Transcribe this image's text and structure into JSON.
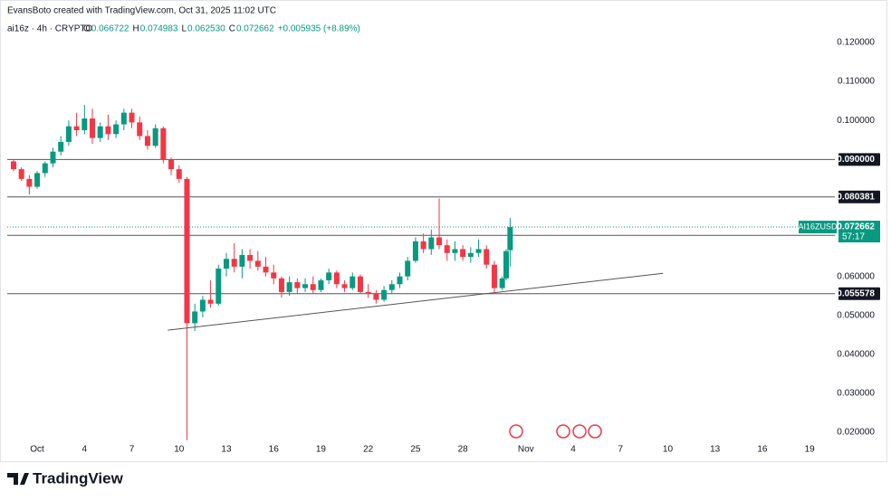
{
  "header": {
    "credit": "EvansBoto created with TradingView.com, Oct 31, 2025 11:02 UTC"
  },
  "chart_data": {
    "type": "candlestick",
    "title": "ai16z · 4h · CRYPTO",
    "ohlc": {
      "o_label": "O",
      "open": "0.066722",
      "h_label": "H",
      "high": "0.074983",
      "l_label": "L",
      "low": "0.062530",
      "c_label": "C",
      "close": "0.072662",
      "change": "+0.005935 (+8.89%)"
    },
    "up_color": "#089981",
    "down_color": "#f23645",
    "x": [
      -0.5,
      0,
      0.5,
      1,
      1.5,
      2,
      2.5,
      3,
      3.5,
      4,
      4.5,
      5,
      5.5,
      6,
      6.5,
      7,
      7.5,
      8,
      8.5,
      9,
      9.5,
      10,
      10.5,
      11,
      11.5,
      12,
      12.5,
      13,
      13.5,
      14,
      14.5,
      15,
      15.5,
      16,
      16.5,
      17,
      17.5,
      18,
      18.5,
      19,
      19.5,
      20,
      20.5,
      21,
      21.5,
      22,
      22.5,
      23,
      23.5,
      24,
      24.5,
      25,
      25.5,
      26,
      26.5,
      27,
      27.5,
      28,
      28.5,
      29,
      29.5,
      30,
      30.5,
      30.75,
      31
    ],
    "open": [
      0.0895,
      0.0875,
      0.085,
      0.083,
      0.0865,
      0.089,
      0.092,
      0.0945,
      0.0985,
      0.0975,
      0.1005,
      0.0955,
      0.0985,
      0.0965,
      0.099,
      0.102,
      0.0995,
      0.096,
      0.0935,
      0.098,
      0.09,
      0.0875,
      0.085,
      0.048,
      0.051,
      0.054,
      0.053,
      0.062,
      0.0645,
      0.0625,
      0.0655,
      0.064,
      0.0625,
      0.061,
      0.0595,
      0.056,
      0.0585,
      0.057,
      0.058,
      0.0565,
      0.059,
      0.061,
      0.058,
      0.057,
      0.06,
      0.056,
      0.0555,
      0.054,
      0.0565,
      0.058,
      0.06,
      0.064,
      0.069,
      0.067,
      0.07,
      0.068,
      0.066,
      0.067,
      0.065,
      0.066,
      0.067,
      0.063,
      0.057,
      0.0595,
      0.066722
    ],
    "high": [
      0.09,
      0.088,
      0.086,
      0.087,
      0.0895,
      0.093,
      0.096,
      0.1,
      0.102,
      0.104,
      0.103,
      0.0995,
      0.1015,
      0.1,
      0.103,
      0.103,
      0.101,
      0.0975,
      0.099,
      0.0985,
      0.0905,
      0.0885,
      0.0855,
      0.053,
      0.055,
      0.059,
      0.063,
      0.066,
      0.0685,
      0.067,
      0.067,
      0.0665,
      0.065,
      0.063,
      0.06,
      0.06,
      0.0595,
      0.0595,
      0.06,
      0.0595,
      0.062,
      0.0615,
      0.059,
      0.061,
      0.0605,
      0.058,
      0.0565,
      0.0575,
      0.059,
      0.061,
      0.065,
      0.07,
      0.071,
      0.072,
      0.08,
      0.0695,
      0.069,
      0.068,
      0.0675,
      0.0695,
      0.068,
      0.064,
      0.06,
      0.067,
      0.074983
    ],
    "low": [
      0.087,
      0.0845,
      0.081,
      0.0825,
      0.0855,
      0.088,
      0.091,
      0.0935,
      0.096,
      0.0965,
      0.094,
      0.0945,
      0.095,
      0.0955,
      0.0975,
      0.098,
      0.095,
      0.0925,
      0.093,
      0.089,
      0.086,
      0.084,
      0.018,
      0.046,
      0.0495,
      0.052,
      0.0525,
      0.06,
      0.061,
      0.0595,
      0.062,
      0.0615,
      0.06,
      0.058,
      0.0545,
      0.055,
      0.0555,
      0.056,
      0.0555,
      0.056,
      0.058,
      0.057,
      0.056,
      0.0565,
      0.0555,
      0.0545,
      0.053,
      0.0535,
      0.0555,
      0.057,
      0.059,
      0.0635,
      0.066,
      0.0655,
      0.067,
      0.064,
      0.064,
      0.064,
      0.0635,
      0.065,
      0.062,
      0.0555,
      0.0565,
      0.059,
      0.06253
    ],
    "close": [
      0.0875,
      0.085,
      0.083,
      0.0865,
      0.089,
      0.092,
      0.0945,
      0.0985,
      0.0975,
      0.1005,
      0.0955,
      0.0985,
      0.0965,
      0.099,
      0.102,
      0.0995,
      0.096,
      0.0935,
      0.098,
      0.09,
      0.0875,
      0.085,
      0.048,
      0.051,
      0.054,
      0.053,
      0.062,
      0.0645,
      0.0625,
      0.0655,
      0.064,
      0.0625,
      0.061,
      0.0595,
      0.056,
      0.0585,
      0.057,
      0.058,
      0.0565,
      0.059,
      0.061,
      0.058,
      0.057,
      0.06,
      0.056,
      0.0555,
      0.054,
      0.0565,
      0.058,
      0.06,
      0.064,
      0.069,
      0.067,
      0.07,
      0.068,
      0.066,
      0.067,
      0.065,
      0.066,
      0.067,
      0.063,
      0.057,
      0.0595,
      0.0665,
      0.072662
    ],
    "xlim": [
      -0.9,
      51.6
    ],
    "xticks": [
      {
        "value": 1,
        "label": "Oct"
      },
      4,
      7,
      10,
      13,
      16,
      19,
      22,
      25,
      28,
      {
        "value": 32,
        "label": "Nov"
      },
      {
        "value": 35,
        "label": "4"
      },
      {
        "value": 38,
        "label": "7"
      },
      {
        "value": 41,
        "label": "10"
      },
      {
        "value": 44,
        "label": "13"
      },
      {
        "value": 47,
        "label": "16"
      },
      {
        "value": 50,
        "label": "19"
      }
    ],
    "ylim": [
      0.0177,
      0.1309
    ],
    "yticks": [
      {
        "value": 0.02,
        "label": "0.020000"
      },
      {
        "value": 0.03,
        "label": "0.030000"
      },
      {
        "value": 0.04,
        "label": "0.040000"
      },
      {
        "value": 0.05,
        "label": "0.050000"
      },
      {
        "value": 0.06,
        "label": "0.060000"
      },
      {
        "value": 0.1,
        "label": "0.100000"
      },
      {
        "value": 0.11,
        "label": "0.110000"
      },
      {
        "value": 0.12,
        "label": "0.120000"
      }
    ],
    "levels": [
      {
        "value": 0.09,
        "label": "0.090000"
      },
      0.080381,
      0.070531,
      0.055578
    ],
    "last_price": {
      "symbol": "AI16ZUSD",
      "value": 0.072662,
      "countdown": "57:17"
    },
    "trendline": {
      "x": [
        9.28,
        40.7
      ],
      "y": [
        0.0462,
        0.0608
      ]
    }
  },
  "footer": {
    "brand": "TradingView"
  }
}
